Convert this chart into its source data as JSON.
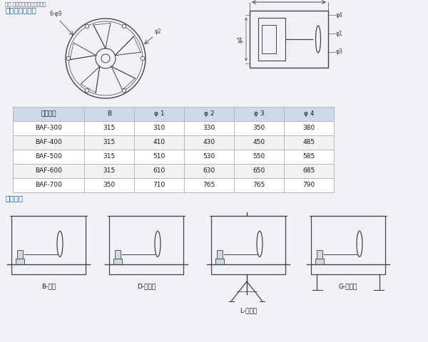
{
  "note_text": "注： 订购时需提出以上标准．",
  "section1_title": "外形及安装尺屸",
  "section2_title": "安装形式",
  "table_headers": [
    "型号规格",
    "B",
    "φ 1",
    "φ 2",
    "φ 3",
    "φ 4"
  ],
  "table_data": [
    [
      "BAF-300",
      "315",
      "310",
      "330",
      "350",
      "380"
    ],
    [
      "BAF-400",
      "315",
      "410",
      "430",
      "450",
      "485"
    ],
    [
      "BAF-500",
      "315",
      "510",
      "530",
      "550",
      "585"
    ],
    [
      "BAF-600",
      "315",
      "610",
      "630",
      "650",
      "685"
    ],
    [
      "BAF-700",
      "350",
      "710",
      "765",
      "765",
      "790"
    ]
  ],
  "install_labels": [
    "B-壁式",
    "D-管道式",
    "L-岗位式",
    "G-固定式"
  ],
  "header_bg": "#ccd9e8",
  "row_bg1": "#ffffff",
  "row_bg2": "#f2f2f2",
  "border_color": "#b0b8c0",
  "blue_color": "#1a5fa8",
  "text_color": "#1a1a1a",
  "line_color": "#444444",
  "bg_color": "#f0f2f5"
}
